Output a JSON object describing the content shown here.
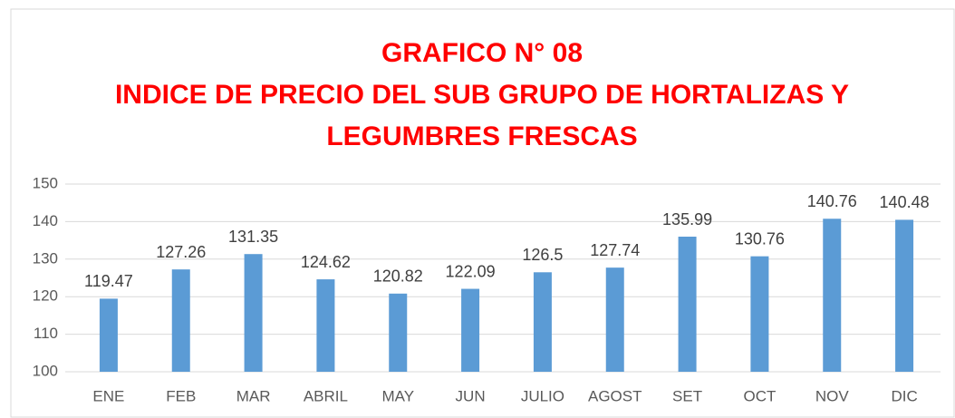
{
  "chart_data": {
    "type": "bar",
    "title": [
      "GRAFICO N° 08",
      "INDICE DE PRECIO DEL SUB GRUPO DE HORTALIZAS Y",
      "LEGUMBRES FRESCAS"
    ],
    "categories": [
      "ENE",
      "FEB",
      "MAR",
      "ABRIL",
      "MAY",
      "JUN",
      "JULIO",
      "AGOST",
      "SET",
      "OCT",
      "NOV",
      "DIC"
    ],
    "values": [
      119.47,
      127.26,
      131.35,
      124.62,
      120.82,
      122.09,
      126.5,
      127.74,
      135.99,
      130.76,
      140.76,
      140.48
    ],
    "color": "#5b9bd5",
    "ylim": [
      100,
      150
    ],
    "yticks": [
      100,
      110,
      120,
      130,
      140,
      150
    ],
    "grid": true
  }
}
